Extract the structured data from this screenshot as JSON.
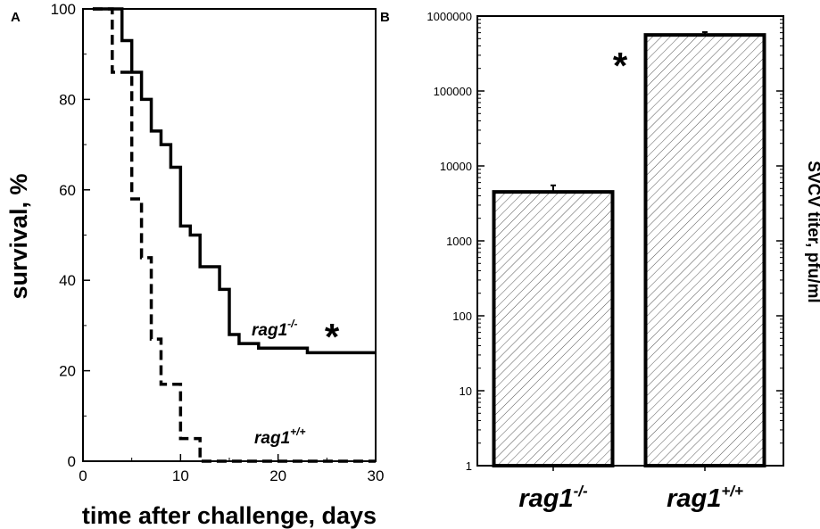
{
  "chart_data": [
    {
      "panel": "A",
      "type": "line",
      "step": true,
      "xlabel": "time after challenge, days",
      "ylabel": "survival, %",
      "xlim": [
        0,
        30
      ],
      "ylim": [
        0,
        100
      ],
      "xticks": [
        0,
        10,
        20,
        30
      ],
      "yticks": [
        0,
        20,
        40,
        60,
        80,
        100
      ],
      "grid": false,
      "series": [
        {
          "name": "rag1",
          "superscript": "-/-",
          "style": "solid",
          "color": "#000000",
          "x": [
            1,
            4,
            5,
            6,
            7,
            8,
            9,
            10,
            11,
            12,
            14,
            15,
            16,
            18,
            23,
            30
          ],
          "y": [
            100,
            93,
            86,
            80,
            73,
            70,
            65,
            52,
            50,
            43,
            38,
            28,
            26,
            25,
            24,
            24
          ]
        },
        {
          "name": "rag1",
          "superscript": "+/+",
          "style": "dashed",
          "color": "#000000",
          "x": [
            1,
            3,
            4,
            5,
            6,
            7,
            8,
            10,
            11,
            12,
            30
          ],
          "y": [
            100,
            86,
            86,
            58,
            45,
            27,
            17,
            5,
            5,
            0,
            0
          ]
        }
      ],
      "annotations": [
        {
          "text": "*",
          "near": "rag1 -/- curve"
        }
      ]
    },
    {
      "panel": "B",
      "type": "bar",
      "yscale": "log",
      "ylabel": "SVCV titer, pfu/ml",
      "ylim": [
        1,
        1000000
      ],
      "yticks": [
        1,
        10,
        100,
        1000,
        10000,
        100000,
        1000000
      ],
      "ytick_labels": [
        "1",
        "10",
        "100",
        "1000",
        "10000",
        "100000",
        "1000000"
      ],
      "categories": [
        {
          "name": "rag1",
          "superscript": "-/-"
        },
        {
          "name": "rag1",
          "superscript": "+/+"
        }
      ],
      "values": [
        4500,
        560000
      ],
      "errors": [
        1000,
        50000
      ],
      "fill": "hatched",
      "annotations": [
        {
          "text": "*",
          "near": "rag1 +/+ bar"
        }
      ]
    }
  ]
}
